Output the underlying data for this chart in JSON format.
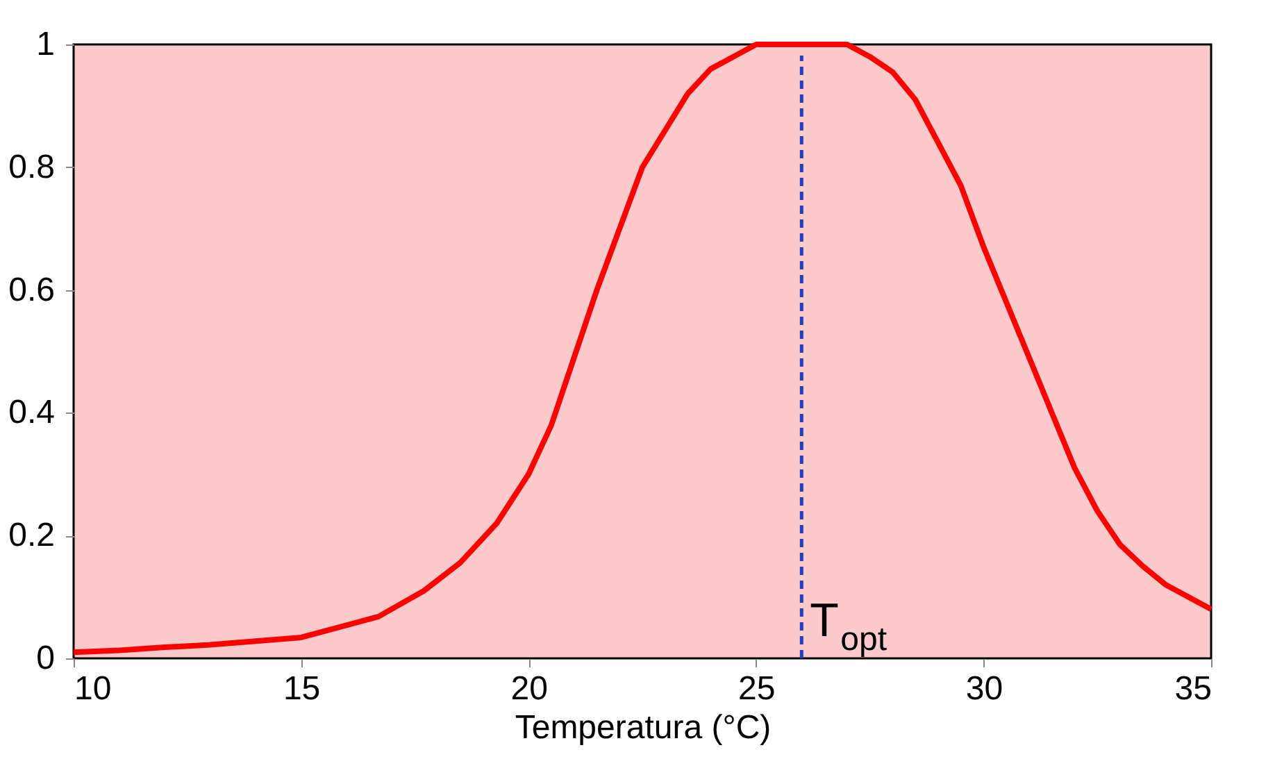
{
  "chart_data": {
    "type": "line",
    "xlabel": "Temperatura (°C)",
    "x": [
      10,
      11,
      12,
      13,
      14,
      15,
      16.7,
      17.7,
      18.5,
      19.3,
      20,
      20.5,
      21,
      21.5,
      22,
      22.5,
      23,
      23.5,
      24,
      24.5,
      25,
      26,
      27,
      27.5,
      28,
      28.5,
      29,
      29.5,
      30,
      30.5,
      31,
      31.5,
      32,
      32.5,
      33,
      33.5,
      34,
      35
    ],
    "series": [
      {
        "color": "#ff0000",
        "values": [
          0.01,
          0.013,
          0.018,
          0.022,
          0.028,
          0.034,
          0.068,
          0.11,
          0.156,
          0.22,
          0.3,
          0.38,
          0.49,
          0.6,
          0.7,
          0.8,
          0.86,
          0.92,
          0.96,
          0.98,
          1.0,
          1.0,
          1.0,
          0.98,
          0.955,
          0.91,
          0.84,
          0.77,
          0.67,
          0.58,
          0.49,
          0.4,
          0.31,
          0.24,
          0.185,
          0.15,
          0.12,
          0.08
        ]
      }
    ],
    "xlim": [
      10,
      35
    ],
    "xticks": [
      10,
      15,
      20,
      25,
      30,
      35
    ],
    "ylim": [
      0,
      1
    ],
    "yticks": [
      {
        "value": 0,
        "label": "0"
      },
      0.2,
      0.4,
      0.6,
      0.8,
      {
        "value": 1,
        "label": "1"
      }
    ],
    "ref_lines": [
      {
        "axis": "x",
        "value": 26,
        "label": "T$_{opt}$",
        "color": "#1f3fbf",
        "line_style": "dashed"
      }
    ],
    "grid": false,
    "marker": "none",
    "line_style": "solid"
  }
}
